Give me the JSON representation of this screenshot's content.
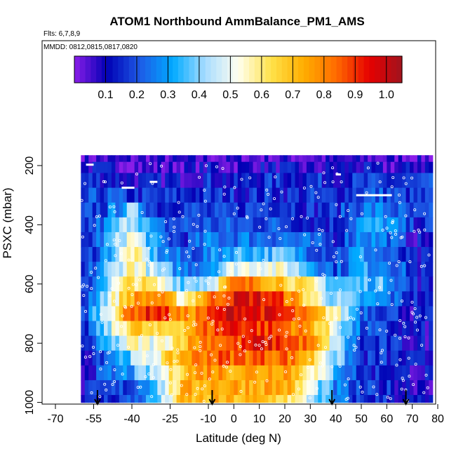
{
  "chart_data": {
    "type": "heatmap",
    "title": "ATOM1 Northbound AmmBalance_PM1_AMS",
    "flights_note": "Flts: 6,7,8,9",
    "mmdd_note": "MMDD: 0812,0815,0817,0820",
    "xlabel": "Latitude (deg N)",
    "ylabel": "PSXC (mbar)",
    "xlim": [
      -70,
      80
    ],
    "ylim": [
      1000,
      150
    ],
    "x_ticks": [
      "-70",
      "-55",
      "-40",
      "-25",
      "-10",
      "0",
      "10",
      "20",
      "30",
      "40",
      "50",
      "60",
      "70",
      "80"
    ],
    "x_tick_values": [
      -70,
      -55,
      -40,
      -25,
      -10,
      0,
      10,
      20,
      30,
      40,
      50,
      60,
      70,
      80
    ],
    "y_ticks": [
      "200",
      "400",
      "600",
      "800",
      "1000"
    ],
    "y_tick_values": [
      200,
      400,
      600,
      800,
      1000
    ],
    "colorbar": {
      "range": [
        0,
        1.05
      ],
      "tick_labels": [
        "0.1",
        "0.2",
        "0.3",
        "0.4",
        "0.5",
        "0.6",
        "0.7",
        "0.8",
        "0.9",
        "1.0"
      ],
      "tick_values": [
        0.1,
        0.2,
        0.3,
        0.4,
        0.5,
        0.6,
        0.7,
        0.8,
        0.9,
        1.0
      ],
      "colors": [
        "#8a1de8",
        "#0000b4",
        "#1e5ae6",
        "#00aaff",
        "#a8dcff",
        "#fffff0",
        "#ffe24a",
        "#ffae00",
        "#ff6a00",
        "#e60000",
        "#a0141e"
      ]
    },
    "pressure_levels": [
      175,
      200,
      250,
      300,
      350,
      400,
      450,
      500,
      550,
      600,
      650,
      700,
      750,
      800,
      850,
      900,
      950,
      1000
    ],
    "lat_nodes": [
      -60,
      -50,
      -40,
      -30,
      -20,
      -10,
      0,
      10,
      20,
      30,
      40,
      50,
      60,
      70,
      77
    ],
    "value_grid": [
      [
        0.05,
        0.05,
        0.05,
        0.05,
        0.05,
        0.05,
        0.05,
        0.05,
        0.05,
        0.05,
        0.05,
        0.05,
        0.05,
        0.05,
        0.05
      ],
      [
        0.1,
        0.1,
        0.05,
        0.05,
        0.05,
        0.1,
        0.05,
        0.1,
        0.1,
        0.05,
        0.1,
        0.1,
        0.05,
        0.1,
        0.1
      ],
      [
        0.15,
        0.15,
        0.1,
        0.1,
        0.1,
        0.15,
        0.1,
        0.15,
        0.15,
        0.15,
        0.15,
        0.15,
        0.15,
        0.15,
        0.15
      ],
      [
        0.15,
        0.2,
        0.15,
        0.15,
        0.15,
        0.15,
        0.15,
        0.15,
        0.15,
        0.15,
        0.15,
        0.2,
        0.2,
        0.15,
        0.15
      ],
      [
        0.15,
        0.2,
        0.4,
        0.15,
        0.2,
        0.15,
        0.15,
        0.2,
        0.2,
        0.15,
        0.15,
        0.25,
        0.25,
        0.15,
        0.15
      ],
      [
        0.15,
        0.25,
        0.5,
        0.2,
        0.2,
        0.2,
        0.2,
        0.2,
        0.2,
        0.15,
        0.15,
        0.3,
        0.3,
        0.15,
        0.15
      ],
      [
        0.1,
        0.3,
        0.55,
        0.25,
        0.15,
        0.25,
        0.25,
        0.25,
        0.25,
        0.2,
        0.15,
        0.3,
        0.25,
        0.1,
        0.1
      ],
      [
        0.1,
        0.3,
        0.6,
        0.3,
        0.2,
        0.25,
        0.35,
        0.35,
        0.35,
        0.25,
        0.2,
        0.3,
        0.2,
        0.1,
        0.1
      ],
      [
        0.1,
        0.35,
        0.6,
        0.4,
        0.25,
        0.3,
        0.5,
        0.55,
        0.5,
        0.35,
        0.2,
        0.3,
        0.3,
        0.15,
        0.1
      ],
      [
        0.1,
        0.4,
        0.65,
        0.55,
        0.4,
        0.45,
        0.8,
        0.8,
        0.7,
        0.55,
        0.35,
        0.35,
        0.35,
        0.15,
        0.1
      ],
      [
        0.15,
        0.45,
        0.75,
        0.8,
        0.55,
        0.8,
        0.95,
        0.95,
        0.85,
        0.6,
        0.4,
        0.3,
        0.25,
        0.15,
        0.1
      ],
      [
        0.15,
        0.5,
        0.85,
        0.95,
        0.75,
        0.85,
        1.0,
        0.95,
        0.9,
        0.75,
        0.55,
        0.25,
        0.2,
        0.1,
        0.1
      ],
      [
        0.1,
        0.4,
        0.7,
        0.6,
        0.7,
        0.85,
        0.95,
        0.9,
        0.85,
        0.75,
        0.5,
        0.2,
        0.15,
        0.1,
        0.1
      ],
      [
        0.1,
        0.3,
        0.55,
        0.5,
        0.7,
        0.85,
        0.85,
        0.95,
        0.9,
        0.8,
        0.45,
        0.15,
        0.15,
        0.1,
        0.1
      ],
      [
        0.1,
        0.25,
        0.4,
        0.55,
        0.75,
        0.85,
        0.85,
        0.85,
        0.85,
        0.7,
        0.4,
        0.15,
        0.15,
        0.1,
        0.1
      ],
      [
        0.1,
        0.2,
        0.3,
        0.45,
        0.7,
        0.8,
        0.75,
        0.75,
        0.8,
        0.6,
        0.35,
        0.15,
        0.15,
        0.1,
        0.1
      ],
      [
        0.1,
        0.15,
        0.2,
        0.4,
        0.7,
        0.75,
        0.75,
        0.75,
        0.75,
        0.5,
        0.25,
        0.15,
        0.15,
        0.1,
        0.1
      ],
      [
        0.1,
        0.15,
        0.2,
        0.35,
        0.7,
        0.7,
        0.7,
        0.7,
        0.65,
        0.45,
        0.25,
        0.15,
        0.15,
        0.1,
        0.1
      ]
    ],
    "profile_arrows_lat": [
      -53.5,
      -8.5,
      38.5,
      67.5
    ]
  }
}
